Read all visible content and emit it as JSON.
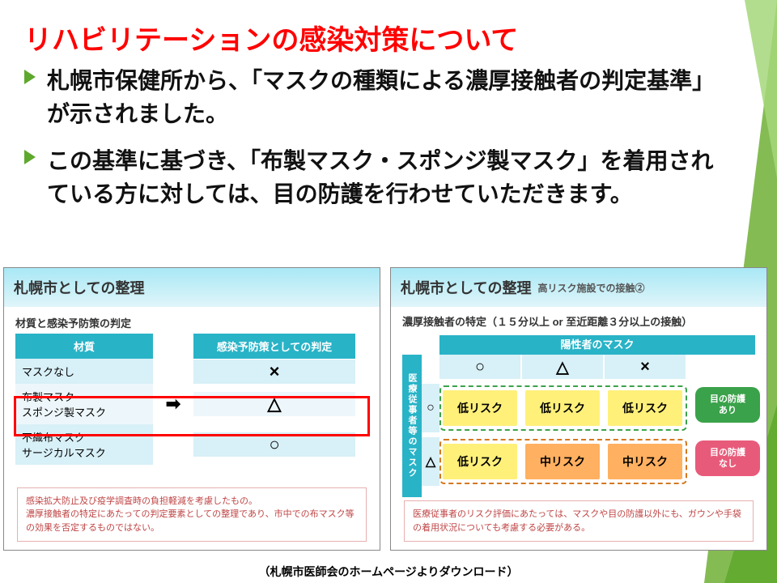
{
  "colors": {
    "title": "#ff0000",
    "accent": "#5fa82e",
    "bullet_text": "#111111",
    "panel_header_grad_top": "#a8e8f5",
    "panel_header_grad_bot": "#e0f5fa",
    "teal": "#29b3c7",
    "sky": "#d8f0f7",
    "yellow": "#fff07a",
    "orange": "#ffb060",
    "alt_row": "#edf7fb",
    "note_text": "#c04545",
    "balloon_green": "#3aa24a",
    "balloon_pink": "#e85a7a",
    "dash_green": "#3aa24a",
    "dash_orange": "#d47820"
  },
  "title": "リハビリテーションの感染対策について",
  "bullets": [
    "札幌市保健所から、「マスクの種類による濃厚接触者の判定基準」が示されました。",
    "この基準に基づき、「布製マスク・スポンジ製マスク」を着用されている方に対しては、目の防護を行わせていただきます。"
  ],
  "panel1": {
    "title": "札幌市としての整理",
    "subtitle": "材質と感染予防策の判定",
    "head_left": "材質",
    "head_right": "感染予防策としての判定",
    "rows": [
      {
        "labels": [
          "マスクなし"
        ],
        "mark": "×",
        "arrow": false
      },
      {
        "labels": [
          "布製マスク",
          "スポンジ製マスク"
        ],
        "mark": "△",
        "arrow": true,
        "highlight": true
      },
      {
        "labels": [
          "不織布マスク",
          "サージカルマスク"
        ],
        "mark": "○",
        "arrow": false
      }
    ],
    "note": "感染拡大防止及び疫学調査時の負担軽減を考慮したもの。\n濃厚接触者の特定にあたっての判定要素としての整理であり、市中での布マスク等の効果を否定するものではない。"
  },
  "panel2": {
    "title": "札幌市としての整理",
    "subtitle_label": "高リスク施設での接触②",
    "sub": "濃厚接触者の特定（１５分以上 or 至近距離３分以上の接触）",
    "top": "陽性者のマスク",
    "side": "医療従事者等のマスク",
    "col_marks": [
      "○",
      "△",
      "×"
    ],
    "row_marks": [
      "○",
      "△"
    ],
    "cells": [
      [
        "低リスク",
        "低リスク",
        "低リスク"
      ],
      [
        "低リスク",
        "中リスク",
        "中リスク"
      ]
    ],
    "cell_colors": [
      [
        "yellow",
        "yellow",
        "yellow"
      ],
      [
        "yellow",
        "orange",
        "orange"
      ]
    ],
    "balloon_green": "目の防護\nあり",
    "balloon_pink": "目の防護\nなし",
    "note": "医療従事者のリスク評価にあたっては、マスクや目の防護以外にも、ガウンや手袋の着用状況についても考慮する必要がある。"
  },
  "source": "（札幌市医師会のホームページよりダウンロード）"
}
